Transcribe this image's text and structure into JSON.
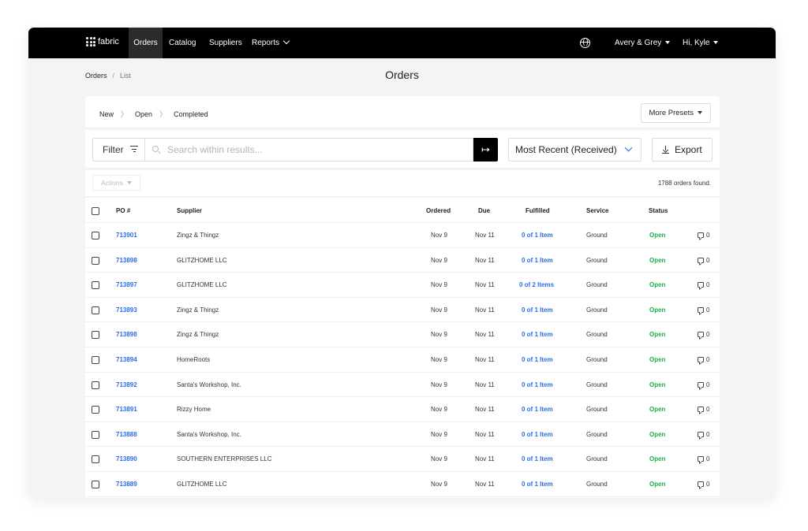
{
  "nav": {
    "logo_text": "fabric",
    "items": [
      {
        "label": "Orders",
        "active": true
      },
      {
        "label": "Catalog"
      },
      {
        "label": "Suppliers"
      },
      {
        "label": "Reports"
      }
    ],
    "org_label": "Avery & Grey",
    "user_label": "Hi, Kyle"
  },
  "breadcrumb": {
    "root": "Orders",
    "separator": "/",
    "current": "List"
  },
  "page_title": "Orders",
  "presets": {
    "steps": [
      "New",
      "Open",
      "Completed"
    ],
    "step_separator": "〉",
    "more_label": "More Presets"
  },
  "toolbar": {
    "filter_label": "Filter",
    "search_placeholder": "Search within results...",
    "go_symbol": "↦",
    "sort_label": "Most Recent (Received)",
    "export_label": "Export"
  },
  "actions": {
    "label": "Actions",
    "count_text": "1788 orders found."
  },
  "table": {
    "headers": {
      "po": "PO #",
      "supplier": "Supplier",
      "ordered": "Ordered",
      "due": "Due",
      "fulfilled": "Fulfilled",
      "service": "Service",
      "status": "Status"
    },
    "rows": [
      {
        "po": "713901",
        "supplier": "Zingz & Thingz",
        "ordered": "Nov 9",
        "due": "Nov 11",
        "fulfilled": "0 of 1 Item",
        "service": "Ground",
        "status": "Open",
        "comments": "0"
      },
      {
        "po": "713898",
        "supplier": "GLITZHOME LLC",
        "ordered": "Nov 9",
        "due": "Nov 11",
        "fulfilled": "0 of 1 Item",
        "service": "Ground",
        "status": "Open",
        "comments": "0"
      },
      {
        "po": "713897",
        "supplier": "GLITZHOME LLC",
        "ordered": "Nov 9",
        "due": "Nov 11",
        "fulfilled": "0 of 2 Items",
        "service": "Ground",
        "status": "Open",
        "comments": "0"
      },
      {
        "po": "713893",
        "supplier": "Zingz & Thingz",
        "ordered": "Nov 9",
        "due": "Nov 11",
        "fulfilled": "0 of 1 Item",
        "service": "Ground",
        "status": "Open",
        "comments": "0"
      },
      {
        "po": "713898",
        "supplier": "Zingz & Thingz",
        "ordered": "Nov 9",
        "due": "Nov 11",
        "fulfilled": "0 of 1 Item",
        "service": "Ground",
        "status": "Open",
        "comments": "0"
      },
      {
        "po": "713894",
        "supplier": "HomeRoots",
        "ordered": "Nov 9",
        "due": "Nov 11",
        "fulfilled": "0 of 1 Item",
        "service": "Ground",
        "status": "Open",
        "comments": "0"
      },
      {
        "po": "713892",
        "supplier": "Santa's Workshop, Inc.",
        "ordered": "Nov 9",
        "due": "Nov 11",
        "fulfilled": "0 of 1 Item",
        "service": "Ground",
        "status": "Open",
        "comments": "0"
      },
      {
        "po": "713891",
        "supplier": "Rizzy Home",
        "ordered": "Nov 9",
        "due": "Nov 11",
        "fulfilled": "0 of 1 Item",
        "service": "Ground",
        "status": "Open",
        "comments": "0"
      },
      {
        "po": "713888",
        "supplier": "Santa's Workshop, Inc.",
        "ordered": "Nov 9",
        "due": "Nov 11",
        "fulfilled": "0 of 1 Item",
        "service": "Ground",
        "status": "Open",
        "comments": "0"
      },
      {
        "po": "713890",
        "supplier": "SOUTHERN ENTERPRISES LLC",
        "ordered": "Nov 9",
        "due": "Nov 11",
        "fulfilled": "0 of 1 Item",
        "service": "Ground",
        "status": "Open",
        "comments": "0"
      },
      {
        "po": "713889",
        "supplier": "GLITZHOME LLC",
        "ordered": "Nov 9",
        "due": "Nov 11",
        "fulfilled": "0 of 1 Item",
        "service": "Ground",
        "status": "Open",
        "comments": "0"
      }
    ]
  },
  "colors": {
    "link": "#2b6de8",
    "status_open": "#1fae4b",
    "nav_bg": "#000000"
  }
}
